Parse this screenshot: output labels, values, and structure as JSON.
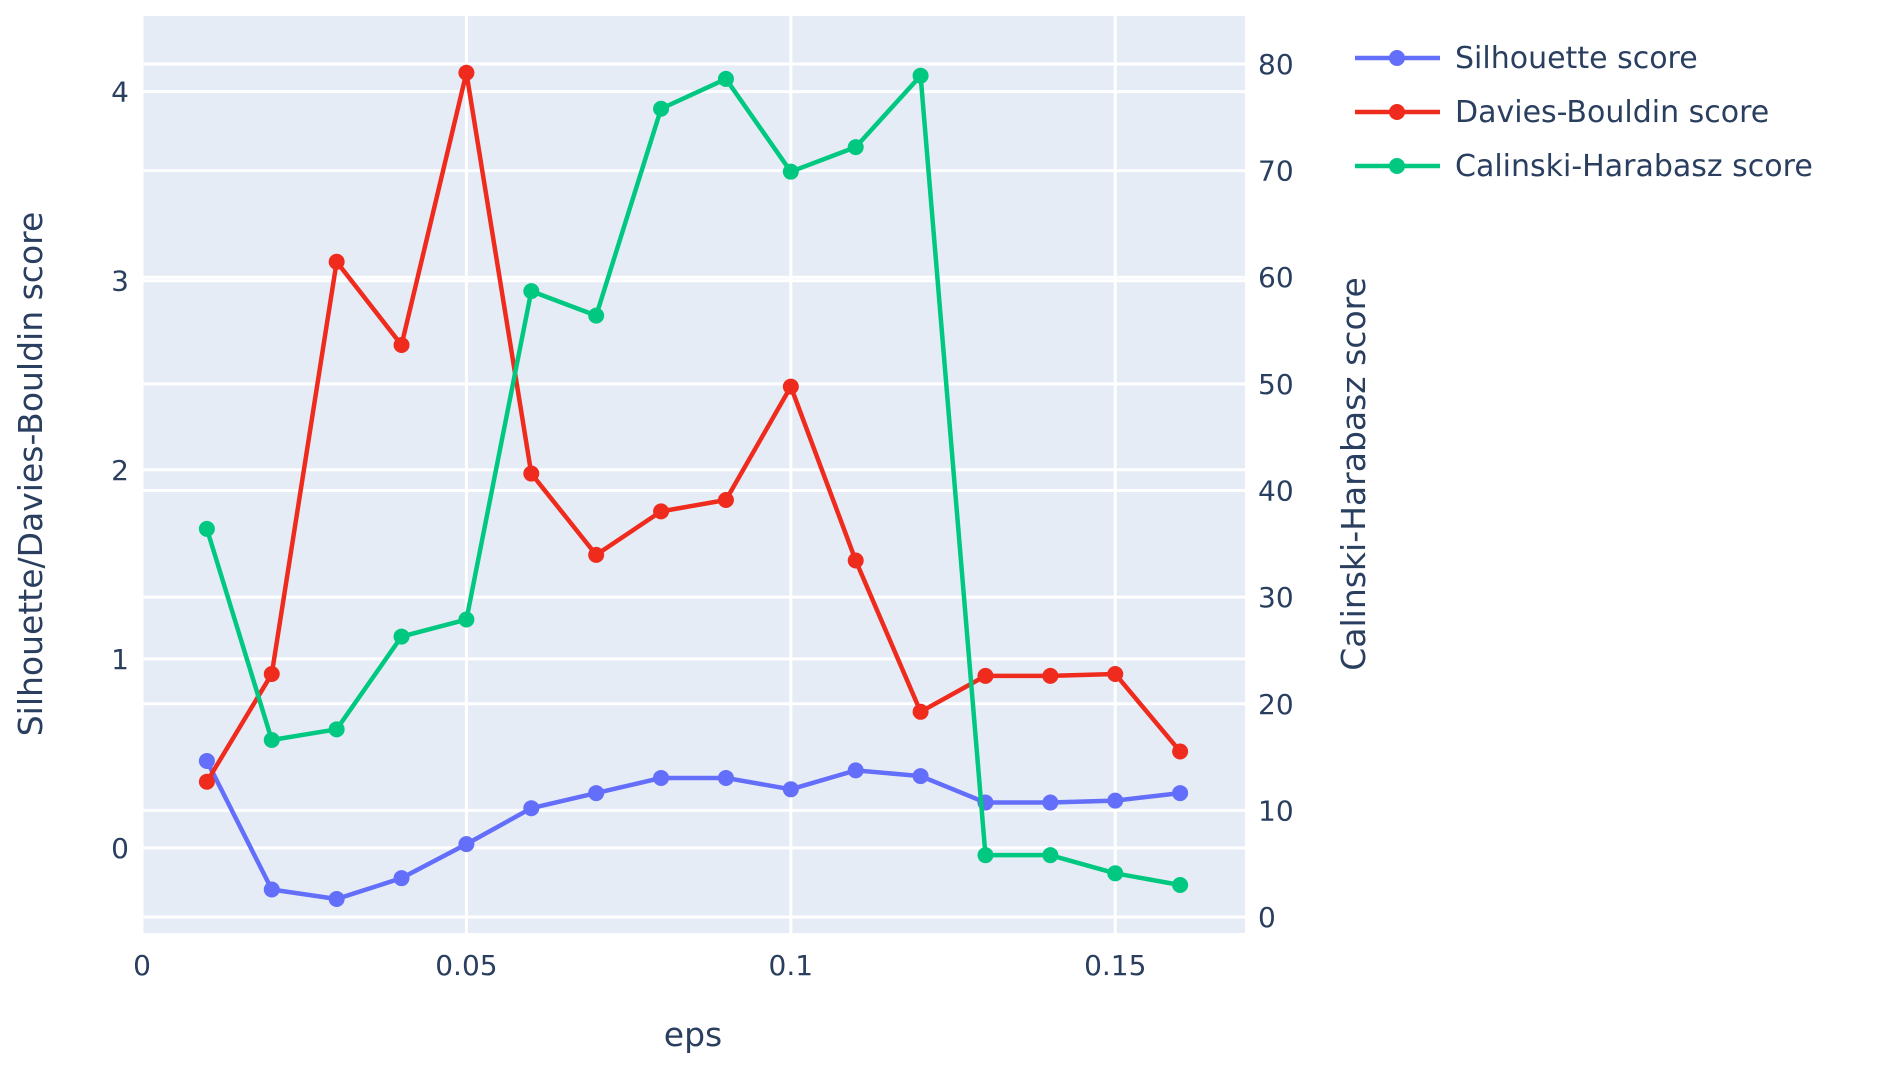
{
  "chart_data": {
    "type": "line",
    "xlabel": "eps",
    "ylabel": "Silhouette/Davies-Bouldin score",
    "y2label": "Calinski-Harabasz score",
    "xlim": [
      0,
      0.17
    ],
    "ylim": [
      -0.45,
      4.4
    ],
    "y2lim": [
      -1.5,
      84.5
    ],
    "x_ticks": [
      0,
      0.05,
      0.1,
      0.15
    ],
    "x_tick_labels": [
      "0",
      "0.05",
      "0.1",
      "0.15"
    ],
    "y_ticks": [
      0,
      1,
      2,
      3,
      4
    ],
    "y_tick_labels": [
      "0",
      "1",
      "2",
      "3",
      "4"
    ],
    "y2_ticks": [
      0,
      10,
      20,
      30,
      40,
      50,
      60,
      70,
      80
    ],
    "y2_tick_labels": [
      "0",
      "10",
      "20",
      "30",
      "40",
      "50",
      "60",
      "70",
      "80"
    ],
    "grid": true,
    "legend_position": "top-right, outside",
    "x": [
      0.01,
      0.02,
      0.03,
      0.04,
      0.05,
      0.06,
      0.07,
      0.08,
      0.09,
      0.1,
      0.11,
      0.12,
      0.13,
      0.14,
      0.15,
      0.16
    ],
    "series": [
      {
        "name": "Silhouette score",
        "axis": "left",
        "color": "#636efa",
        "values": [
          0.46,
          -0.22,
          -0.27,
          -0.16,
          0.02,
          0.21,
          0.29,
          0.37,
          0.37,
          0.31,
          0.41,
          0.38,
          0.24,
          0.24,
          0.25,
          0.29
        ]
      },
      {
        "name": "Davies-Bouldin score",
        "axis": "left",
        "color": "#ef2b1e",
        "values": [
          0.35,
          0.92,
          3.1,
          2.66,
          4.1,
          1.98,
          1.55,
          1.78,
          1.84,
          2.44,
          1.52,
          0.72,
          0.91,
          0.91,
          0.92,
          0.51
        ]
      },
      {
        "name": "Calinski-Harabasz score",
        "axis": "right",
        "color": "#00c880",
        "values": [
          36.4,
          16.6,
          17.6,
          26.3,
          27.9,
          58.7,
          56.4,
          75.8,
          78.6,
          69.9,
          72.2,
          78.9,
          5.8,
          5.8,
          4.1,
          3.0
        ]
      }
    ]
  }
}
